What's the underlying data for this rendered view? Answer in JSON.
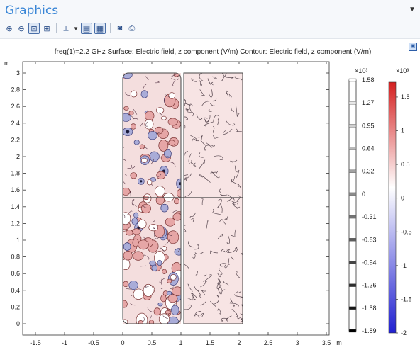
{
  "window": {
    "title": "Graphics"
  },
  "toolbar": {
    "buttons": [
      {
        "name": "zoom-in-icon",
        "glyph": "⊕"
      },
      {
        "name": "zoom-out-icon",
        "glyph": "⊖"
      },
      {
        "name": "zoom-box-icon",
        "glyph": "⊡"
      },
      {
        "name": "zoom-extents-icon",
        "glyph": "⊞"
      },
      {
        "name": "axis-orientation-icon",
        "glyph": "⟂"
      },
      {
        "name": "grid-icon",
        "glyph": "▤"
      },
      {
        "name": "table-icon",
        "glyph": "▦"
      },
      {
        "name": "camera-icon",
        "glyph": "◙"
      },
      {
        "name": "print-icon",
        "glyph": "⎙"
      }
    ]
  },
  "plot": {
    "header": "freq(1)=2.2 GHz   Surface: Electric field, z component (V/m)  Contour: Electric field, z component (V/m)",
    "x_axis": {
      "unit": "m",
      "ticks": [
        "-1.5",
        "-1",
        "-0.5",
        "0",
        "0.5",
        "1",
        "1.5",
        "2",
        "2.5",
        "3",
        "3.5"
      ]
    },
    "y_axis": {
      "unit": "m",
      "ticks": [
        "0",
        "0.2",
        "0.4",
        "0.6",
        "0.8",
        "1",
        "1.2",
        "1.4",
        "1.6",
        "1.8",
        "2",
        "2.2",
        "2.4",
        "2.6",
        "2.8",
        "3"
      ]
    },
    "contour_legend": {
      "multiplier": "×10³",
      "labels": [
        "1.58",
        "1.27",
        "0.95",
        "0.64",
        "0.32",
        "0",
        "-0.31",
        "-0.63",
        "-0.94",
        "-1.26",
        "-1.58",
        "-1.89"
      ]
    },
    "surface_legend": {
      "multiplier": "×10³",
      "labels": [
        "1.5",
        "1",
        "0.5",
        "0",
        "-0.5",
        "-1",
        "-1.5",
        "-2"
      ],
      "colors": {
        "max": "#d42020",
        "mid": "#ffffff",
        "min": "#2020d0"
      }
    }
  }
}
